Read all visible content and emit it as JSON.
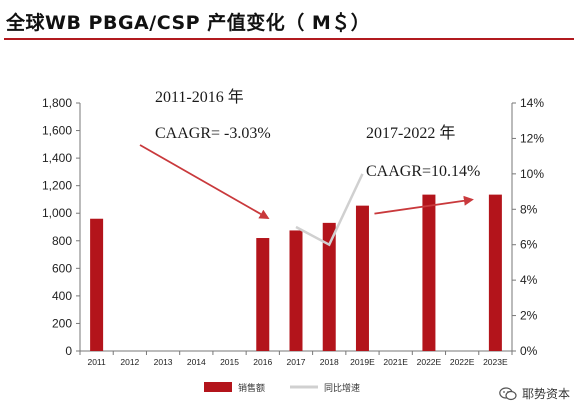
{
  "title": "全球WB PBGA/CSP 产值变化（ M＄）",
  "watermark": {
    "text": "耶势资本",
    "icon": "wechat-icon"
  },
  "colors": {
    "bar": "#b3141b",
    "line": "#d0d0d0",
    "arrow": "#c9393c",
    "title_rule": "#b11a1f"
  },
  "chart_data": {
    "type": "bar",
    "categories": [
      "2011",
      "2012",
      "2013",
      "2014",
      "2015",
      "2016",
      "2017",
      "2018",
      "2019E",
      "2021E",
      "2022E",
      "2022E",
      "2023E"
    ],
    "series": [
      {
        "name": "销售额",
        "type": "bar",
        "axis": "left",
        "values": [
          960,
          null,
          null,
          null,
          null,
          820,
          875,
          930,
          1055,
          null,
          1135,
          null,
          1135
        ]
      },
      {
        "name": "同比增速",
        "type": "line",
        "axis": "right",
        "values": [
          null,
          null,
          null,
          null,
          null,
          null,
          0.07,
          0.06,
          0.1,
          null,
          null,
          null,
          null
        ]
      }
    ],
    "y_left": {
      "min": 0,
      "max": 1800,
      "ticks": [
        "0",
        "200",
        "400",
        "600",
        "800",
        "1,000",
        "1,200",
        "1,400",
        "1,600",
        "1,800"
      ]
    },
    "y_right": {
      "min": 0,
      "max": 0.14,
      "ticks": [
        "0%",
        "2%",
        "4%",
        "6%",
        "8%",
        "10%",
        "12%",
        "14%"
      ]
    },
    "legend": {
      "placement": "bottom",
      "items": [
        "销售额",
        "同比增速"
      ]
    },
    "annotations": [
      {
        "period": "2011-2016 年",
        "label": "CAAGR= -3.03%",
        "from_category": "2011",
        "to_category": "2016"
      },
      {
        "period": "2017-2022 年",
        "label": "CAAGR=10.14%",
        "from_category": "2019E",
        "to_category": "2022E"
      }
    ]
  }
}
